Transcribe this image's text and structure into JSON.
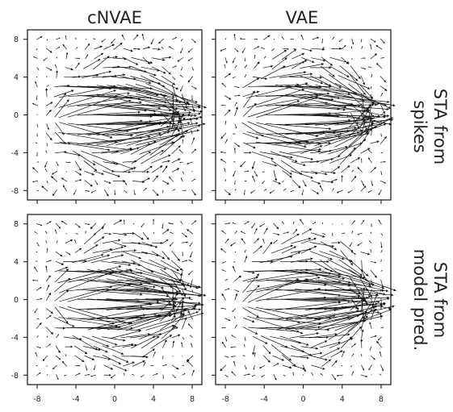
{
  "figure": {
    "column_titles": [
      "cNVAE",
      "VAE"
    ],
    "row_titles": [
      [
        "STA from",
        "spikes"
      ],
      [
        "STA from",
        "model pred."
      ]
    ]
  },
  "chart_data": [
    {
      "type": "quiver",
      "title": "cNVAE",
      "row_label": "STA from spikes",
      "xlim": [
        -9,
        9
      ],
      "ylim": [
        -9,
        9
      ],
      "xticks": [
        "-8",
        "-4",
        "0",
        "4",
        "8"
      ],
      "yticks": [
        "8",
        "4",
        "0",
        "-4",
        "-8"
      ],
      "x_tick_labels_shown": false,
      "y_tick_labels_shown": true,
      "grid": false,
      "field": {
        "grid_x": [
          -8,
          -7,
          -6,
          -5,
          -4,
          -3,
          -2,
          -1,
          0,
          1,
          2,
          3,
          4,
          5,
          6,
          7,
          8
        ],
        "grid_y": [
          -8,
          -7,
          -6,
          -5,
          -4,
          -3,
          -2,
          -1,
          0,
          1,
          2,
          3,
          4,
          5,
          6,
          7,
          8
        ],
        "rightward_flow_center": [
          0.5,
          0
        ],
        "core_horizontal_band_y": [
          -3,
          3
        ],
        "core_horizontal_band_x": [
          -4.5,
          3.5
        ],
        "max_arrow_length": 9.5
      }
    },
    {
      "type": "quiver",
      "title": "VAE",
      "row_label": "STA from spikes",
      "xlim": [
        -9,
        9
      ],
      "ylim": [
        -9,
        9
      ],
      "xticks": [
        "-8",
        "-4",
        "0",
        "4",
        "8"
      ],
      "yticks": [
        "8",
        "4",
        "0",
        "-4",
        "-8"
      ],
      "x_tick_labels_shown": false,
      "y_tick_labels_shown": false,
      "grid": false,
      "field": {
        "grid_x": [
          -8,
          -7,
          -6,
          -5,
          -4,
          -3,
          -2,
          -1,
          0,
          1,
          2,
          3,
          4,
          5,
          6,
          7,
          8
        ],
        "grid_y": [
          -8,
          -7,
          -6,
          -5,
          -4,
          -3,
          -2,
          -1,
          0,
          1,
          2,
          3,
          4,
          5,
          6,
          7,
          8
        ],
        "rightward_flow_center": [
          0.5,
          0
        ],
        "core_horizontal_band_y": [
          -3,
          3
        ],
        "core_horizontal_band_x": [
          -4.5,
          3.5
        ],
        "max_arrow_length": 9.5
      }
    },
    {
      "type": "quiver",
      "title": "cNVAE",
      "row_label": "STA from model pred.",
      "xlim": [
        -9,
        9
      ],
      "ylim": [
        -9,
        9
      ],
      "xticks": [
        "-8",
        "-4",
        "0",
        "4",
        "8"
      ],
      "yticks": [
        "8",
        "4",
        "0",
        "-4",
        "-8"
      ],
      "x_tick_labels_shown": true,
      "y_tick_labels_shown": true,
      "grid": false,
      "field": {
        "grid_x": [
          -8,
          -7,
          -6,
          -5,
          -4,
          -3,
          -2,
          -1,
          0,
          1,
          2,
          3,
          4,
          5,
          6,
          7,
          8
        ],
        "grid_y": [
          -8,
          -7,
          -6,
          -5,
          -4,
          -3,
          -2,
          -1,
          0,
          1,
          2,
          3,
          4,
          5,
          6,
          7,
          8
        ],
        "rightward_flow_center": [
          0.5,
          0
        ],
        "core_horizontal_band_y": [
          -3,
          3
        ],
        "core_horizontal_band_x": [
          -4.5,
          3.5
        ],
        "max_arrow_length": 9.5
      }
    },
    {
      "type": "quiver",
      "title": "VAE",
      "row_label": "STA from model pred.",
      "xlim": [
        -9,
        9
      ],
      "ylim": [
        -9,
        9
      ],
      "xticks": [
        "-8",
        "-4",
        "0",
        "4",
        "8"
      ],
      "yticks": [
        "8",
        "4",
        "0",
        "-4",
        "-8"
      ],
      "x_tick_labels_shown": true,
      "y_tick_labels_shown": false,
      "grid": false,
      "field": {
        "grid_x": [
          -8,
          -7,
          -6,
          -5,
          -4,
          -3,
          -2,
          -1,
          0,
          1,
          2,
          3,
          4,
          5,
          6,
          7,
          8
        ],
        "grid_y": [
          -8,
          -7,
          -6,
          -5,
          -4,
          -3,
          -2,
          -1,
          0,
          1,
          2,
          3,
          4,
          5,
          6,
          7,
          8
        ],
        "rightward_flow_center": [
          0.5,
          0
        ],
        "core_horizontal_band_y": [
          -3,
          3
        ],
        "core_horizontal_band_x": [
          -4.5,
          3.5
        ],
        "max_arrow_length": 9.5
      }
    }
  ]
}
